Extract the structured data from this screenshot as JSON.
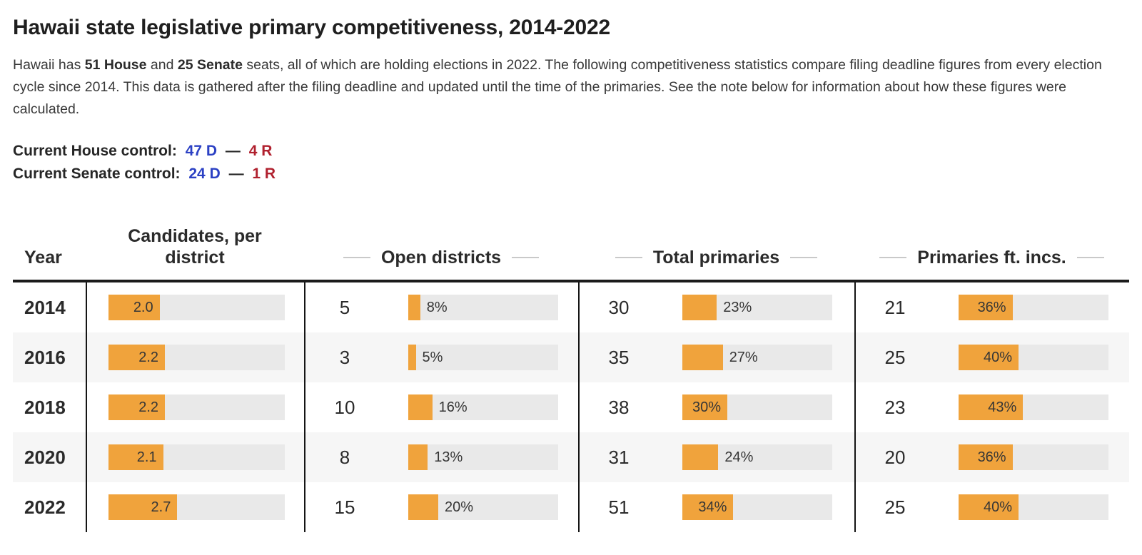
{
  "intro": {
    "text_1": "Hawaii has ",
    "bold_1": "51 House",
    "text_2": " and ",
    "bold_2": "25 Senate",
    "text_3": " seats, all of which are holding elections in 2022. The following competitiveness statistics compare filing deadline figures from every election cycle since 2014. This data is gathered after the filing deadline and updated until the time of the primaries. See the note below for information about how these figures were calculated."
  },
  "control": {
    "house": {
      "label": "Current House control:",
      "dem": "47 D",
      "sep": "—",
      "rep": "4 R"
    },
    "senate": {
      "label": "Current Senate control:",
      "dem": "24 D",
      "sep": "—",
      "rep": "1 R"
    }
  },
  "colors": {
    "democrat": "#2C41C4",
    "republican": "#B0202E",
    "bar_fill": "#F0A33C",
    "bar_track": "#E9E9E9",
    "row_stripe": "#F6F6F6"
  },
  "chart_data": {
    "type": "table",
    "title": "Hawaii state legislative primary competitiveness, 2014-2022",
    "columns": {
      "year": "Year",
      "candidates": "Candidates, per district",
      "open": "Open districts",
      "total": "Total primaries",
      "incumbents": "Primaries ft. incs."
    },
    "bar_color": "#F0A33C",
    "bar_track_color": "#E9E9E9",
    "rows": [
      {
        "year": "2014",
        "candidates": {
          "value": 2.0,
          "label": "2.0",
          "pct": 29,
          "inside": true
        },
        "open": {
          "count": "5",
          "bar": {
            "label": "8%",
            "pct": 8,
            "inside": false
          }
        },
        "total": {
          "count": "30",
          "bar": {
            "label": "23%",
            "pct": 23,
            "inside": false
          }
        },
        "incumbents": {
          "count": "21",
          "bar": {
            "label": "36%",
            "pct": 36,
            "inside": true
          }
        }
      },
      {
        "year": "2016",
        "candidates": {
          "value": 2.2,
          "label": "2.2",
          "pct": 32,
          "inside": true
        },
        "open": {
          "count": "3",
          "bar": {
            "label": "5%",
            "pct": 5,
            "inside": false
          }
        },
        "total": {
          "count": "35",
          "bar": {
            "label": "27%",
            "pct": 27,
            "inside": false
          }
        },
        "incumbents": {
          "count": "25",
          "bar": {
            "label": "40%",
            "pct": 40,
            "inside": true
          }
        }
      },
      {
        "year": "2018",
        "candidates": {
          "value": 2.2,
          "label": "2.2",
          "pct": 32,
          "inside": true
        },
        "open": {
          "count": "10",
          "bar": {
            "label": "16%",
            "pct": 16,
            "inside": false
          }
        },
        "total": {
          "count": "38",
          "bar": {
            "label": "30%",
            "pct": 30,
            "inside": true
          }
        },
        "incumbents": {
          "count": "23",
          "bar": {
            "label": "43%",
            "pct": 43,
            "inside": true
          }
        }
      },
      {
        "year": "2020",
        "candidates": {
          "value": 2.1,
          "label": "2.1",
          "pct": 31,
          "inside": true
        },
        "open": {
          "count": "8",
          "bar": {
            "label": "13%",
            "pct": 13,
            "inside": false
          }
        },
        "total": {
          "count": "31",
          "bar": {
            "label": "24%",
            "pct": 24,
            "inside": false
          }
        },
        "incumbents": {
          "count": "20",
          "bar": {
            "label": "36%",
            "pct": 36,
            "inside": true
          }
        }
      },
      {
        "year": "2022",
        "candidates": {
          "value": 2.7,
          "label": "2.7",
          "pct": 39,
          "inside": true
        },
        "open": {
          "count": "15",
          "bar": {
            "label": "20%",
            "pct": 20,
            "inside": false
          }
        },
        "total": {
          "count": "51",
          "bar": {
            "label": "34%",
            "pct": 34,
            "inside": true
          }
        },
        "incumbents": {
          "count": "25",
          "bar": {
            "label": "40%",
            "pct": 40,
            "inside": true
          }
        }
      }
    ]
  }
}
